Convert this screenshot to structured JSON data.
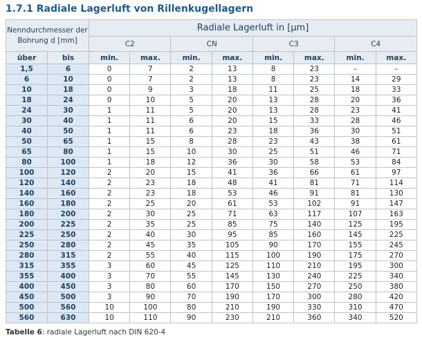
{
  "header": {
    "title": "1.7.1 Radiale Lagerluft von Rillenkugellagern"
  },
  "table": {
    "bore_header": "Nenndurchmesser der Bohrung d [mm]",
    "clearance_header": "Radiale Lagerluft in [µm]",
    "groups": [
      "C2",
      "CN",
      "C3",
      "C4"
    ],
    "sub_headers": [
      "über",
      "bis",
      "min.",
      "max.",
      "min.",
      "max.",
      "min.",
      "max.",
      "min.",
      "max."
    ],
    "rows": [
      [
        "1,5",
        "6",
        "0",
        "7",
        "2",
        "13",
        "8",
        "23",
        "–",
        "–"
      ],
      [
        "6",
        "10",
        "0",
        "7",
        "2",
        "13",
        "8",
        "23",
        "14",
        "29"
      ],
      [
        "10",
        "18",
        "0",
        "9",
        "3",
        "18",
        "11",
        "25",
        "18",
        "33"
      ],
      [
        "18",
        "24",
        "0",
        "10",
        "5",
        "20",
        "13",
        "28",
        "20",
        "36"
      ],
      [
        "24",
        "30",
        "1",
        "11",
        "5",
        "20",
        "13",
        "28",
        "23",
        "41"
      ],
      [
        "30",
        "40",
        "1",
        "11",
        "6",
        "20",
        "15",
        "33",
        "28",
        "46"
      ],
      [
        "40",
        "50",
        "1",
        "11",
        "6",
        "23",
        "18",
        "36",
        "30",
        "51"
      ],
      [
        "50",
        "65",
        "1",
        "15",
        "8",
        "28",
        "23",
        "43",
        "38",
        "61"
      ],
      [
        "65",
        "80",
        "1",
        "15",
        "10",
        "30",
        "25",
        "51",
        "46",
        "71"
      ],
      [
        "80",
        "100",
        "1",
        "18",
        "12",
        "36",
        "30",
        "58",
        "53",
        "84"
      ],
      [
        "100",
        "120",
        "2",
        "20",
        "15",
        "41",
        "36",
        "66",
        "61",
        "97"
      ],
      [
        "120",
        "140",
        "2",
        "23",
        "18",
        "48",
        "41",
        "81",
        "71",
        "114"
      ],
      [
        "140",
        "160",
        "2",
        "23",
        "18",
        "53",
        "46",
        "91",
        "81",
        "130"
      ],
      [
        "160",
        "180",
        "2",
        "25",
        "20",
        "61",
        "53",
        "102",
        "91",
        "147"
      ],
      [
        "180",
        "200",
        "2",
        "30",
        "25",
        "71",
        "63",
        "117",
        "107",
        "163"
      ],
      [
        "200",
        "225",
        "2",
        "35",
        "25",
        "85",
        "75",
        "140",
        "125",
        "195"
      ],
      [
        "225",
        "250",
        "2",
        "40",
        "30",
        "95",
        "85",
        "160",
        "145",
        "225"
      ],
      [
        "250",
        "280",
        "2",
        "45",
        "35",
        "105",
        "90",
        "170",
        "155",
        "245"
      ],
      [
        "280",
        "315",
        "2",
        "55",
        "40",
        "115",
        "100",
        "190",
        "175",
        "270"
      ],
      [
        "315",
        "355",
        "3",
        "60",
        "45",
        "125",
        "110",
        "210",
        "195",
        "300"
      ],
      [
        "355",
        "400",
        "3",
        "70",
        "55",
        "145",
        "130",
        "240",
        "225",
        "340"
      ],
      [
        "400",
        "450",
        "3",
        "80",
        "60",
        "170",
        "150",
        "270",
        "250",
        "380"
      ],
      [
        "450",
        "500",
        "3",
        "90",
        "70",
        "190",
        "170",
        "300",
        "280",
        "420"
      ],
      [
        "500",
        "560",
        "10",
        "100",
        "80",
        "210",
        "190",
        "330",
        "310",
        "470"
      ],
      [
        "560",
        "630",
        "10",
        "110",
        "90",
        "230",
        "210",
        "360",
        "340",
        "520"
      ]
    ]
  },
  "caption": {
    "label": "Tabelle 6",
    "text": ": radiale Lagerluft nach DIN 620-4"
  }
}
